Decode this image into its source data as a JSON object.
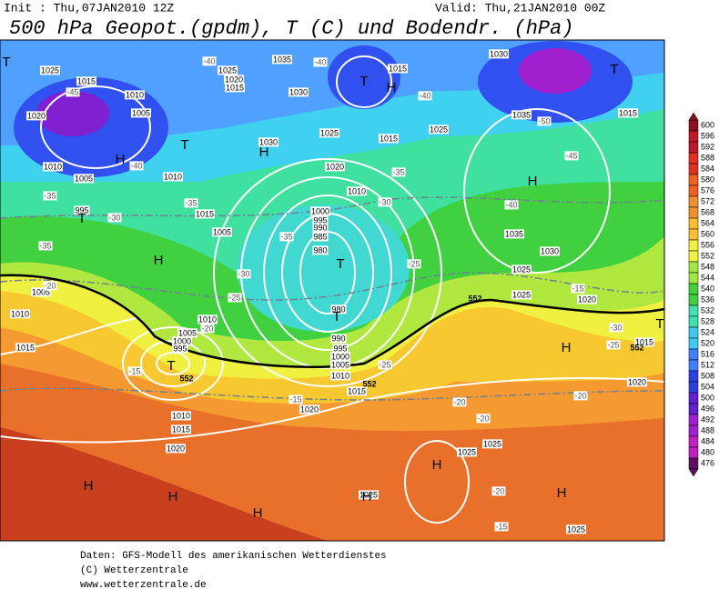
{
  "header": {
    "init": "Init : Thu,07JAN2010 12Z",
    "valid": "Valid: Thu,21JAN2010 00Z",
    "title": "500 hPa Geopot.(gpdm), T (C) und Bodendr. (hPa)"
  },
  "colorbar": {
    "labels": [
      600,
      596,
      592,
      588,
      584,
      580,
      576,
      572,
      568,
      564,
      560,
      556,
      552,
      548,
      544,
      540,
      536,
      532,
      528,
      524,
      520,
      516,
      512,
      508,
      504,
      500,
      496,
      492,
      488,
      484,
      480,
      476
    ]
  },
  "map": {
    "pressure_labels": [
      "1025",
      "1015",
      "1010",
      "1005",
      "1020",
      "1025",
      "1020",
      "1015",
      "1035",
      "1030",
      "1015",
      "1030",
      "1035",
      "1015",
      "1030",
      "1025",
      "1015",
      "1025",
      "1020",
      "1010",
      "1005",
      "1010",
      "995",
      "1015",
      "1010",
      "1000",
      "995",
      "990",
      "985",
      "980",
      "1005",
      "1035",
      "1030",
      "1025",
      "1020",
      "1025",
      "1005",
      "1010",
      "1015",
      "1010",
      "1005",
      "1000",
      "995",
      "990",
      "995",
      "1000",
      "1005",
      "1010",
      "1015",
      "1020",
      "1010",
      "1015",
      "1020",
      "1025",
      "1025",
      "1025",
      "1025",
      "1015",
      "1020",
      "980"
    ],
    "temperature_labels": [
      "-40",
      "-40",
      "-45",
      "-40",
      "-40",
      "-50",
      "-45",
      "-40",
      "-35",
      "-35",
      "-35",
      "-30",
      "-30",
      "-35",
      "-35",
      "-30",
      "-25",
      "-25",
      "-20",
      "-20",
      "-15",
      "-25",
      "-15",
      "-20",
      "-20",
      "-20",
      "-30",
      "-25",
      "-20",
      "-15",
      "-15"
    ],
    "line_labels": [
      "552",
      "552",
      "552",
      "552"
    ],
    "centers": [
      "T",
      "T",
      "H",
      "T",
      "H",
      "H",
      "H",
      "T",
      "T",
      "H",
      "T",
      "T",
      "T",
      "H",
      "T",
      "H",
      "H",
      "H",
      "H",
      "H",
      "H"
    ]
  },
  "footer": {
    "source": "Daten: GFS-Modell des amerikanischen Wetterdienstes",
    "copyright": "(C) Wetterzentrale",
    "url": "www.wetterzentrale.de"
  }
}
